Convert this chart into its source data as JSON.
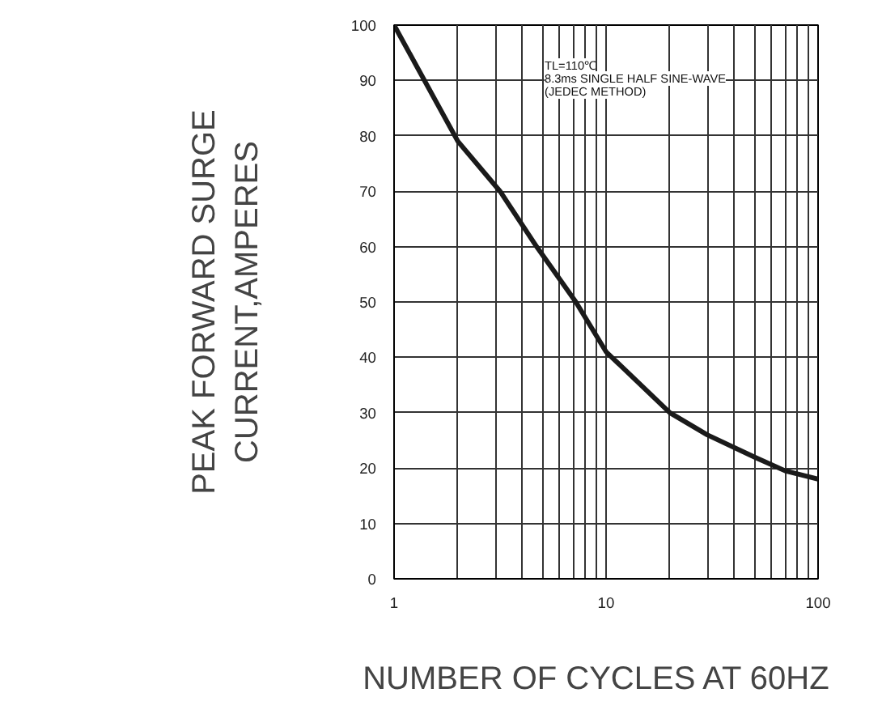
{
  "chart_data": {
    "type": "line",
    "xlabel": "NUMBER  OF  CYCLES AT 60HZ",
    "ylabel": "PEAK FORWARD SURGE\nCURRENT,AMPERES",
    "x": [
      1,
      2,
      3.16,
      4.7,
      7.2,
      10,
      20,
      30,
      50,
      70,
      100
    ],
    "series": [
      {
        "color": "#1a1a1a",
        "values": [
          100,
          79,
          70,
          60,
          50,
          41,
          30,
          26,
          22,
          19.5,
          18
        ]
      }
    ],
    "log": "x",
    "xlim": [
      1,
      100
    ],
    "xticks": [
      1,
      10,
      100
    ],
    "ylim": [
      0,
      100
    ],
    "yticks": [
      0,
      10,
      20,
      30,
      40,
      50,
      60,
      70,
      80,
      90,
      100
    ],
    "grid": true,
    "marker": "none",
    "line_style": "solid",
    "annotations": [
      "TL=110℃",
      "8.3ms SINGLE HALF SINE-WAVE",
      "(JEDEC METHOD)"
    ]
  }
}
